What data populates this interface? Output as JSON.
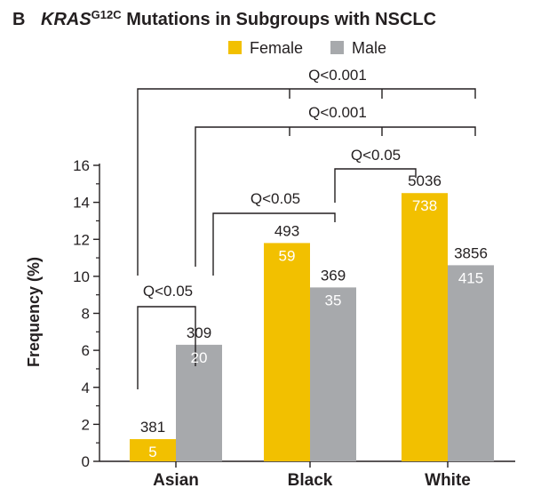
{
  "chart_data": {
    "type": "bar",
    "panel_label": "B",
    "title_gene": "KRAS",
    "title_superscript": "G12C",
    "title_rest": " Mutations in Subgroups with NSCLC",
    "ylabel": "Frequency (%)",
    "xlabel": "",
    "ylim": [
      0,
      16
    ],
    "yticks": [
      0,
      2,
      4,
      6,
      8,
      10,
      12,
      14,
      16
    ],
    "grid": false,
    "legend_position": "top-center",
    "categories": [
      "Asian",
      "Black",
      "White"
    ],
    "series": [
      {
        "name": "Female",
        "color": "#f2c000",
        "values": [
          1.2,
          11.8,
          14.5
        ],
        "total_labels": [
          "381",
          "493",
          "5036"
        ],
        "count_labels": [
          "5",
          "59",
          "738"
        ]
      },
      {
        "name": "Male",
        "color": "#a7a9ac",
        "values": [
          6.3,
          9.4,
          10.6
        ],
        "total_labels": [
          "309",
          "369",
          "3856"
        ],
        "count_labels": [
          "20",
          "35",
          "415"
        ]
      }
    ],
    "comparisons": [
      {
        "label": "Q<0.05",
        "from": "Asian Female",
        "to": "Asian Male"
      },
      {
        "label": "Q<0.05",
        "from": "Asian",
        "to": "Black"
      },
      {
        "label": "Q<0.05",
        "from": "Black",
        "to": "White"
      },
      {
        "label": "Q<0.001",
        "from": "Asian Male",
        "to": "Black / White"
      },
      {
        "label": "Q<0.001",
        "from": "Asian Female",
        "to": "Black / White"
      }
    ]
  }
}
